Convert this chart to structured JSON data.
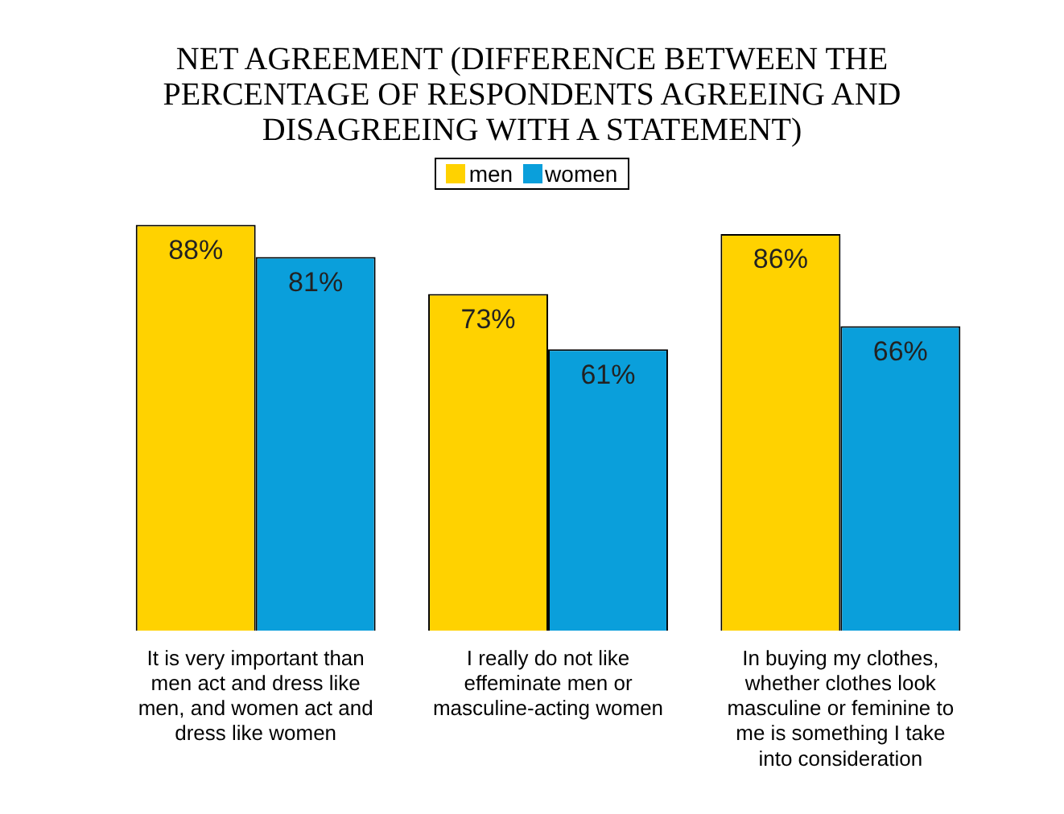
{
  "chart_data": {
    "type": "bar",
    "title": "NET AGREEMENT (DIFFERENCE BETWEEN THE PERCENTAGE OF RESPONDENTS AGREEING AND DISAGREEING WITH A STATEMENT)",
    "categories": [
      "It is very important than men act and dress like men, and women act and dress like women",
      "I really do not like effeminate men or masculine-acting women",
      "In buying my clothes, whether clothes look masculine or feminine to me is something I take into consideration"
    ],
    "series": [
      {
        "name": "men",
        "color": "#ffd200",
        "values": [
          88,
          73,
          86
        ],
        "value_labels": [
          "88%",
          "73%",
          "86%"
        ]
      },
      {
        "name": "women",
        "color": "#0a9fdb",
        "values": [
          81,
          61,
          66
        ],
        "value_labels": [
          "81%",
          "61%",
          "66%"
        ]
      }
    ],
    "legend": "top",
    "grid": false
  }
}
